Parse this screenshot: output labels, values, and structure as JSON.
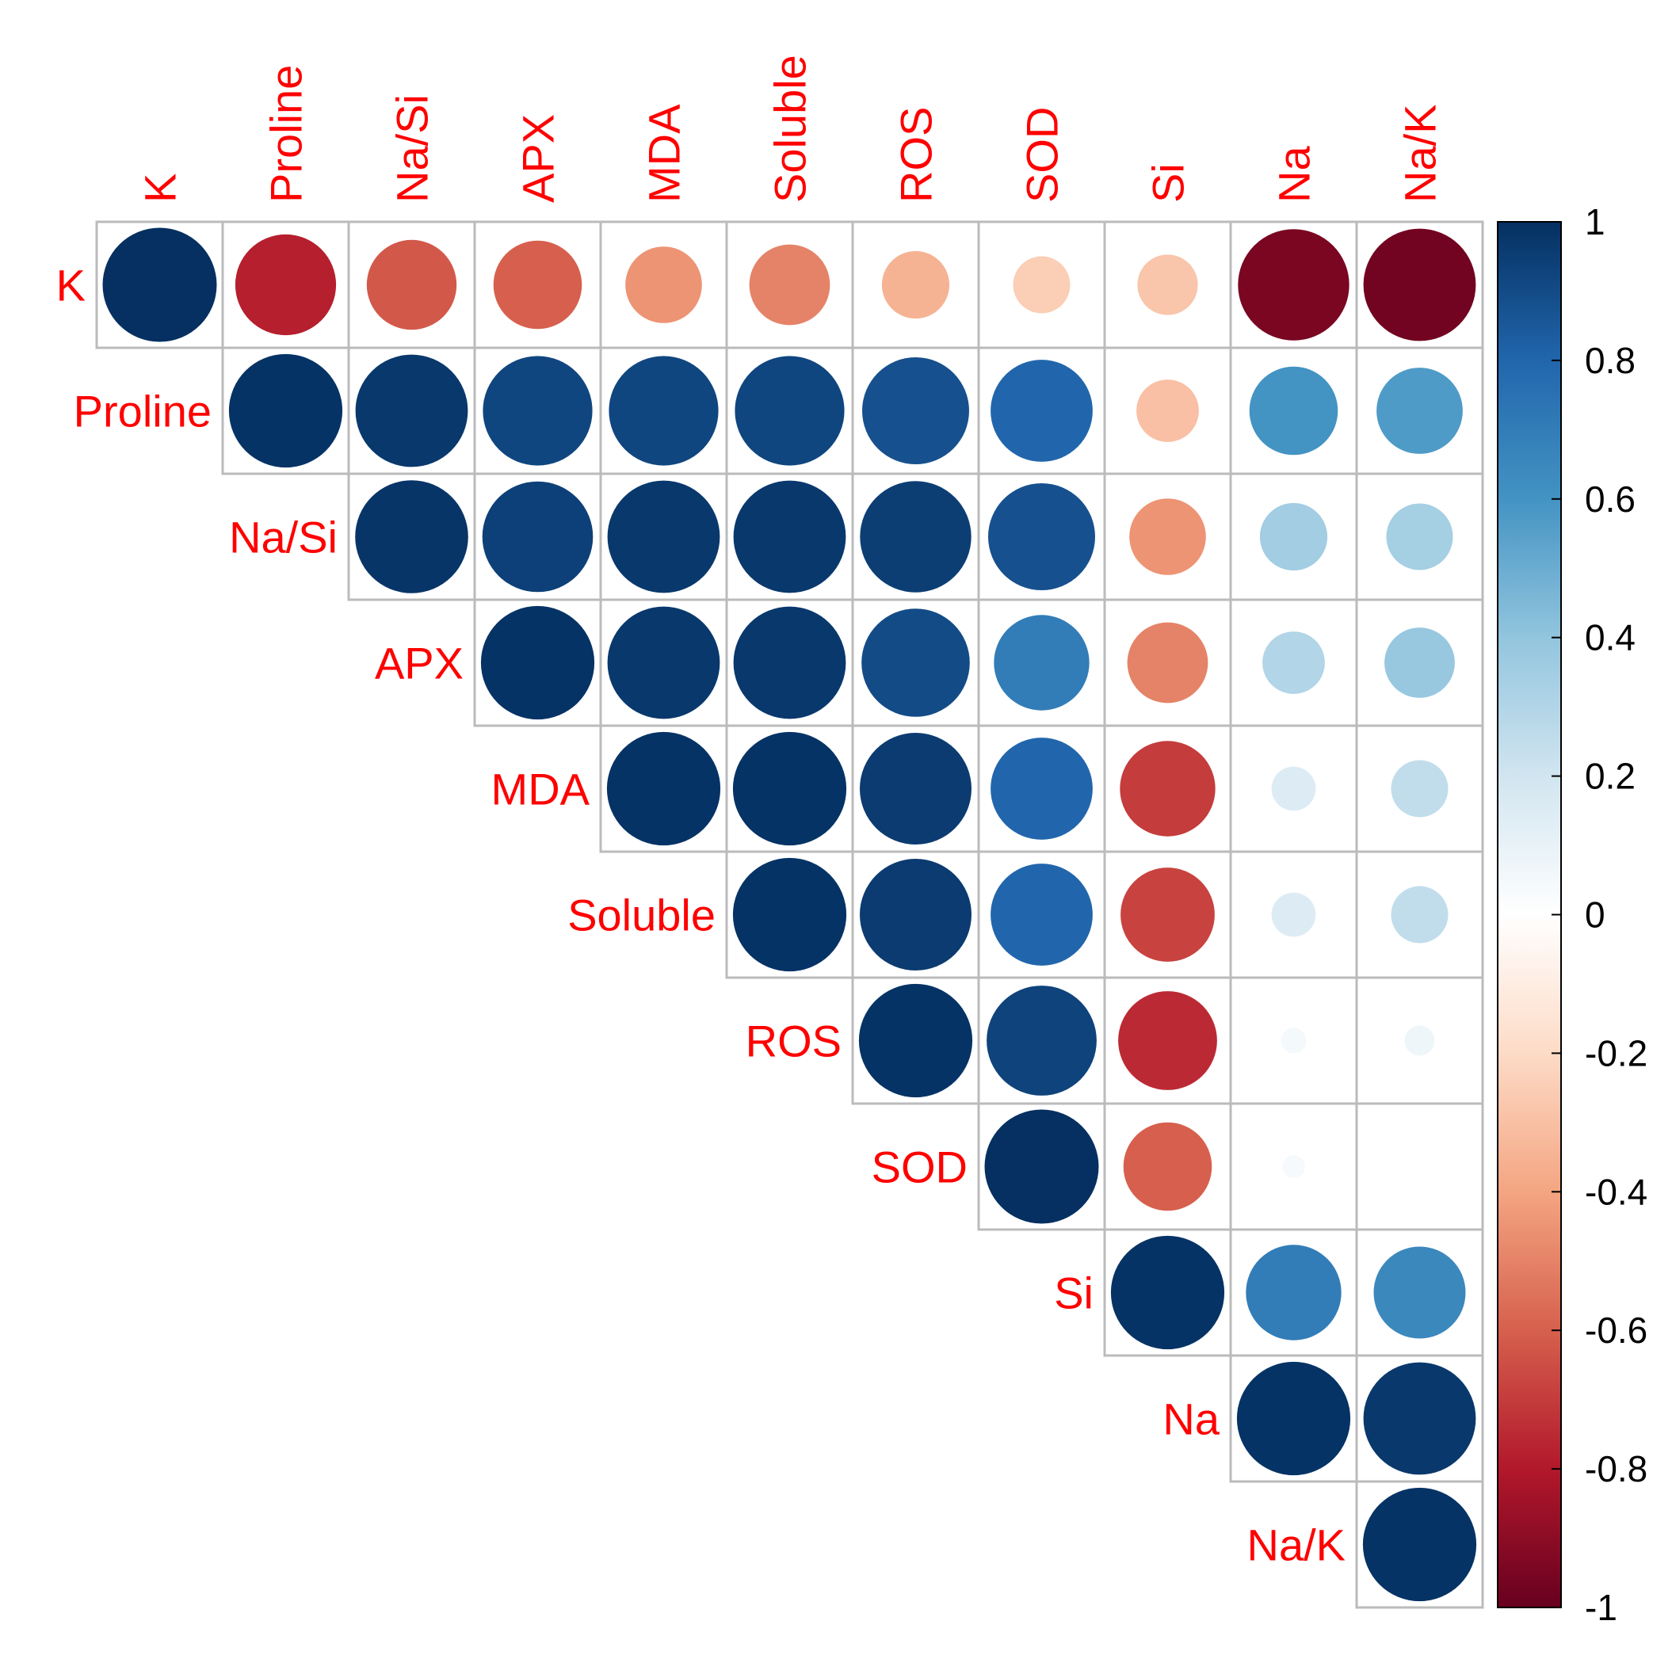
{
  "chart_data": {
    "type": "heatmap",
    "style": "correlation-circles",
    "layout": "upper-triangle",
    "variables": [
      "K",
      "Proline",
      "Na/Si",
      "APX",
      "MDA",
      "Soluble",
      "ROS",
      "SOD",
      "Si",
      "Na",
      "Na/K"
    ],
    "matrix": [
      [
        1.0,
        -0.78,
        -0.62,
        -0.6,
        -0.45,
        -0.5,
        -0.35,
        -0.25,
        -0.28,
        -0.95,
        -0.97
      ],
      [
        null,
        0.99,
        0.97,
        0.92,
        0.92,
        0.92,
        0.88,
        0.8,
        -0.3,
        0.6,
        0.57
      ],
      [
        null,
        null,
        0.98,
        0.94,
        0.97,
        0.97,
        0.95,
        0.88,
        -0.45,
        0.35,
        0.34
      ],
      [
        null,
        null,
        null,
        0.99,
        0.97,
        0.97,
        0.9,
        0.7,
        -0.5,
        0.3,
        0.38
      ],
      [
        null,
        null,
        null,
        null,
        0.99,
        0.99,
        0.96,
        0.8,
        -0.7,
        0.15,
        0.25
      ],
      [
        null,
        null,
        null,
        null,
        null,
        0.99,
        0.96,
        0.8,
        -0.68,
        0.15,
        0.25
      ],
      [
        null,
        null,
        null,
        null,
        null,
        null,
        0.99,
        0.93,
        -0.75,
        0.05,
        0.07
      ],
      [
        null,
        null,
        null,
        null,
        null,
        null,
        null,
        1.0,
        -0.6,
        0.04,
        0.0
      ],
      [
        null,
        null,
        null,
        null,
        null,
        null,
        null,
        null,
        0.99,
        0.7,
        0.65
      ],
      [
        null,
        null,
        null,
        null,
        null,
        null,
        null,
        null,
        null,
        0.99,
        0.97
      ],
      [
        null,
        null,
        null,
        null,
        null,
        null,
        null,
        null,
        null,
        null,
        0.99
      ]
    ],
    "colorbar": {
      "range": [
        -1,
        1
      ],
      "ticks": [
        "1",
        "0.8",
        "0.6",
        "0.4",
        "0.2",
        "0",
        "-0.2",
        "-0.4",
        "-0.6",
        "-0.8",
        "-1"
      ]
    },
    "colors": {
      "label": "#ff0000",
      "grid": "#bbbbbb",
      "scale": [
        "#67001f",
        "#b2182b",
        "#d6604d",
        "#f4a582",
        "#fddbc7",
        "#ffffff",
        "#d1e5f0",
        "#92c5de",
        "#4393c3",
        "#2166ac",
        "#053061"
      ]
    }
  }
}
